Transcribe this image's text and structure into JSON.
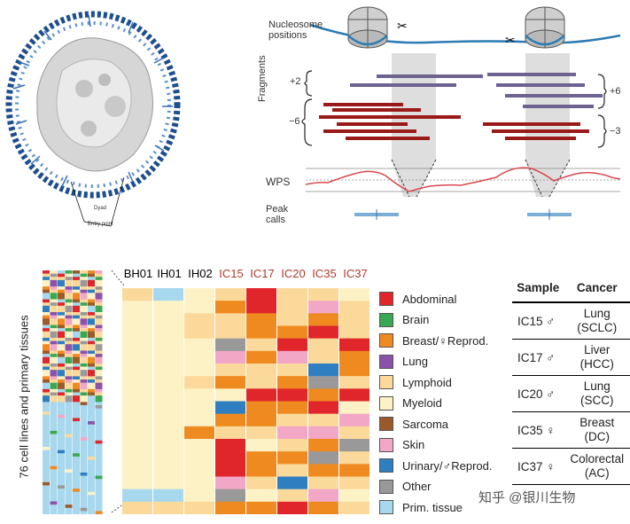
{
  "nucleosome_diagram": {
    "dyad_label": "Dyad",
    "entry_label": "Entry point"
  },
  "wps_panel": {
    "nucleosome_label_line1": "Nucleosome",
    "nucleosome_label_line2": "positions",
    "fragments_label": "Fragments",
    "wps_label": "WPS",
    "peak_label_line1": "Peak",
    "peak_label_line2": "calls",
    "left_plus": "+2",
    "left_minus": "−6",
    "right_plus": "+6",
    "right_minus": "−3",
    "colors": {
      "long": "#9a1a1a",
      "short": "#6e6290",
      "wps": "#d9484e",
      "peak": "#7aaed6",
      "dna": "#2d7bb3"
    }
  },
  "heatmap": {
    "y_label": "76 cell lines and primary tissues",
    "columns": [
      "BH01",
      "IH01",
      "IH02",
      "IC15",
      "IC17",
      "IC20",
      "IC35",
      "IC37"
    ],
    "column_colors": [
      "#000000",
      "#000000",
      "#000000",
      "#b03a2e",
      "#b03a2e",
      "#b03a2e",
      "#b03a2e",
      "#b03a2e"
    ]
  },
  "legend": [
    {
      "label": "Abdominal",
      "color": "#e0262b"
    },
    {
      "label": "Brain",
      "color": "#3aa852"
    },
    {
      "label": "Breast/♀Reprod.",
      "color": "#ef8a20"
    },
    {
      "label": "Lung",
      "color": "#8a52a8"
    },
    {
      "label": "Lymphoid",
      "color": "#fbd99a"
    },
    {
      "label": "Myeloid",
      "color": "#fdf2c5"
    },
    {
      "label": "Sarcoma",
      "color": "#9b5a2b"
    },
    {
      "label": "Skin",
      "color": "#f2a7c6"
    },
    {
      "label": "Urinary/♂Reprod.",
      "color": "#2f7fc0"
    },
    {
      "label": "Other",
      "color": "#999999"
    },
    {
      "label": "Prim. tissue",
      "color": "#a8d8ee"
    }
  ],
  "sample_table": {
    "headers": [
      "Sample",
      "Cancer"
    ],
    "rows": [
      {
        "sample": "IC15 ♂",
        "cancer_line1": "Lung",
        "cancer_line2": "(SCLC)"
      },
      {
        "sample": "IC17 ♂",
        "cancer_line1": "Liver",
        "cancer_line2": "(HCC)"
      },
      {
        "sample": "IC20 ♂",
        "cancer_line1": "Lung",
        "cancer_line2": "(SCC)"
      },
      {
        "sample": "IC35 ♀",
        "cancer_line1": "Breast",
        "cancer_line2": "(DC)"
      },
      {
        "sample": "IC37 ♀",
        "cancer_line1": "Colorectal",
        "cancer_line2": "(AC)"
      }
    ]
  },
  "watermark": "知乎 @银川生物"
}
